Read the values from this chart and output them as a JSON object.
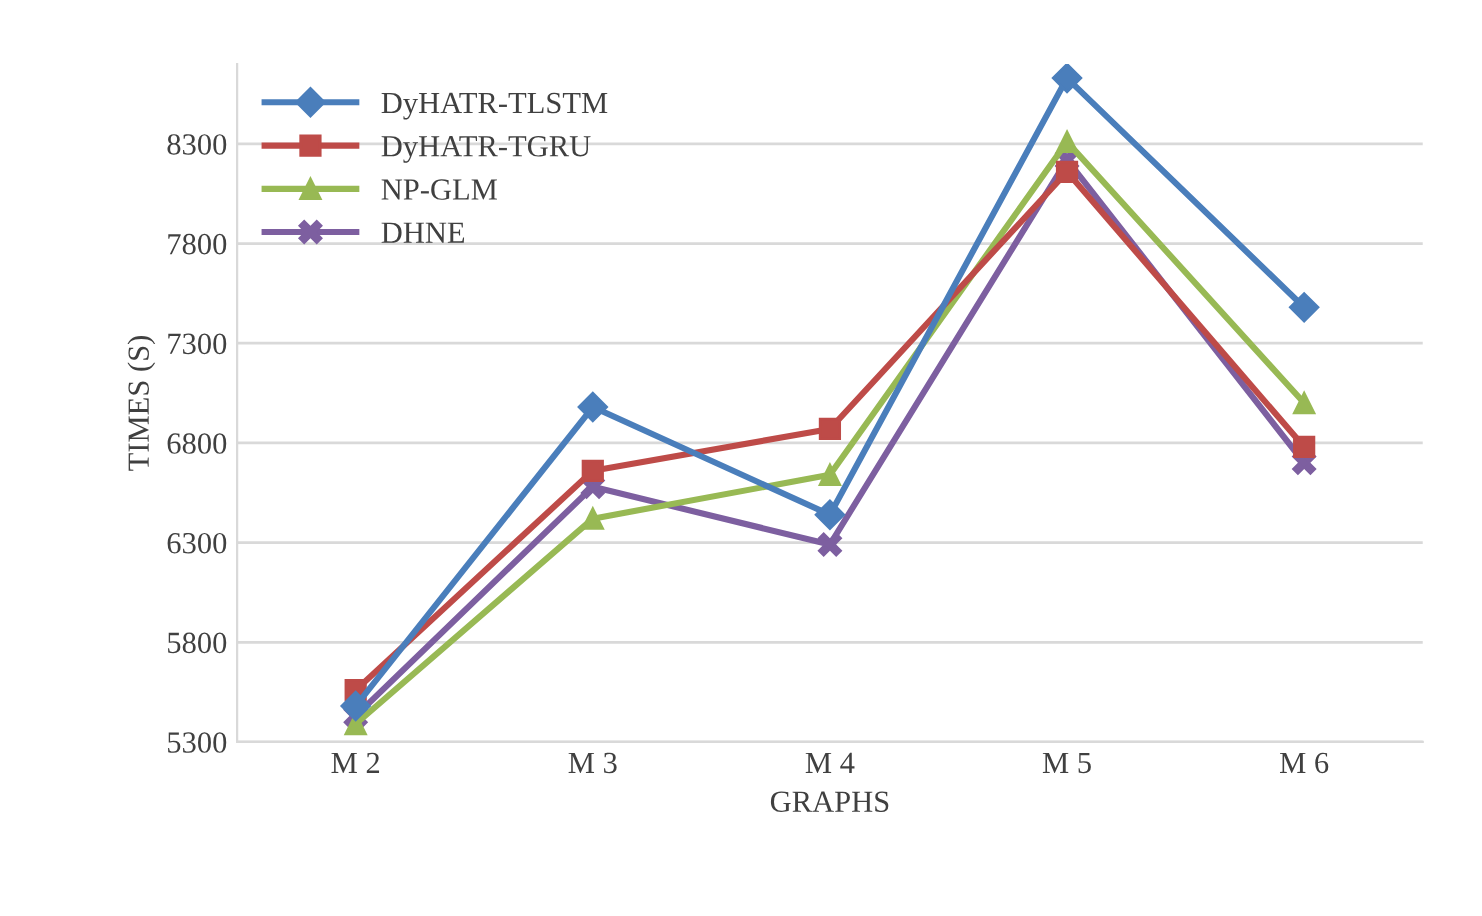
{
  "chart_data": {
    "type": "line",
    "xlabel": "GRAPHS",
    "ylabel": "TIMES (S)",
    "categories": [
      "M 2",
      "M 3",
      "M 4",
      "M 5",
      "M 6"
    ],
    "series": [
      {
        "name": "DyHATR-TLSTM",
        "color": "#4a7ebb",
        "marker": "diamond",
        "values": [
          5480,
          6980,
          6440,
          8630,
          7480
        ]
      },
      {
        "name": "DyHATR-TGRU",
        "color": "#be4b48",
        "marker": "square",
        "values": [
          5560,
          6660,
          6870,
          8160,
          6780
        ]
      },
      {
        "name": "NP-GLM",
        "color": "#98b954",
        "marker": "triangle",
        "values": [
          5390,
          6420,
          6640,
          8310,
          7000
        ]
      },
      {
        "name": "DHNE",
        "color": "#7d5fa0",
        "marker": "cross",
        "values": [
          5430,
          6580,
          6290,
          8220,
          6700
        ]
      }
    ],
    "ylim": [
      5300,
      8700
    ],
    "yticks": [
      5300,
      5800,
      6300,
      6800,
      7300,
      7800,
      8300
    ],
    "grid": "y",
    "legend": "top left",
    "line_style": "solid"
  }
}
